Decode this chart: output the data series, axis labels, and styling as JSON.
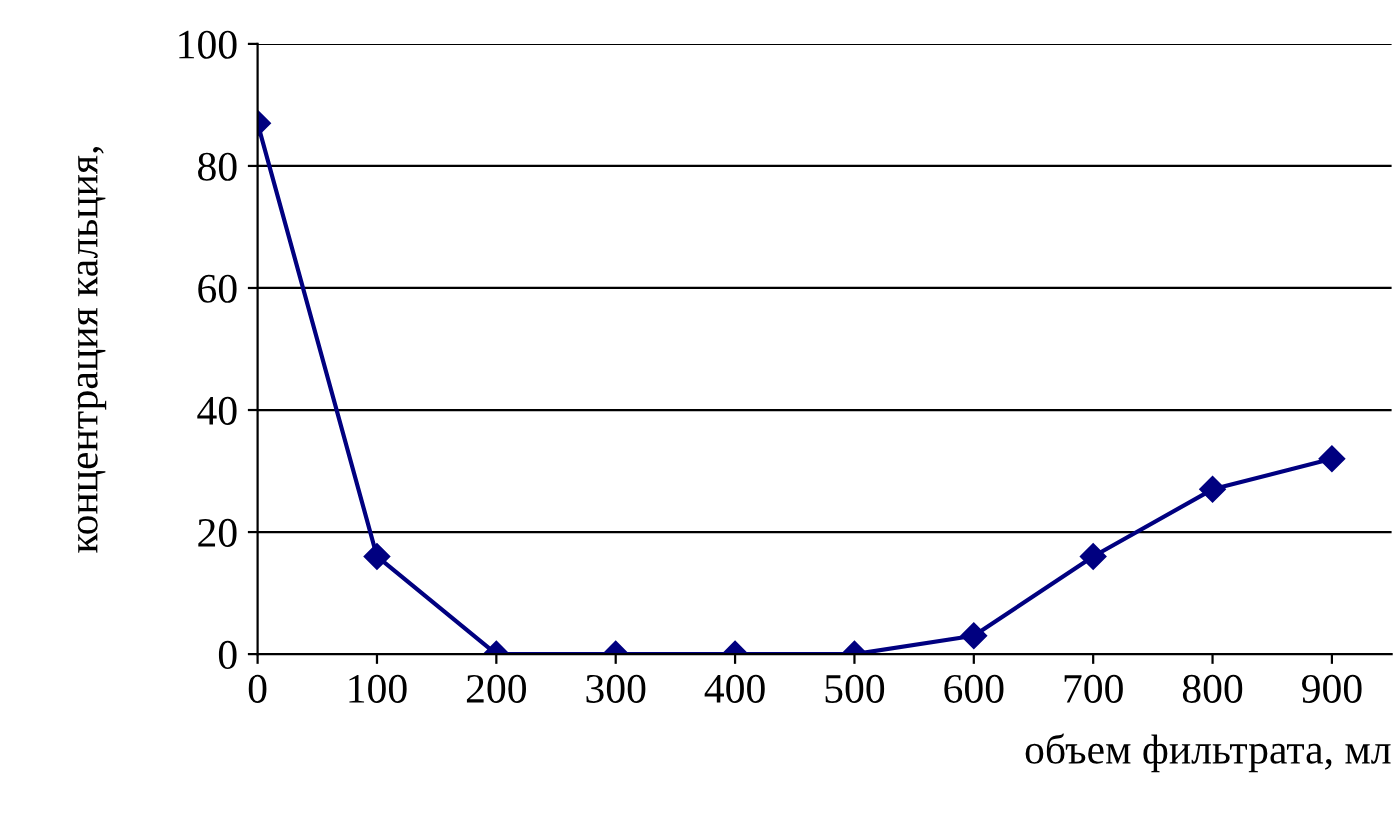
{
  "chart_data": {
    "type": "line",
    "xlabel": "объем фильтрата, мл",
    "ylabel": "концентрация кальция,",
    "x": [
      0,
      100,
      200,
      300,
      400,
      500,
      600,
      700,
      800,
      900
    ],
    "series": [
      {
        "color": "#000080",
        "values": [
          87,
          16,
          0,
          0,
          0,
          0,
          3,
          16,
          27,
          32
        ]
      }
    ],
    "xlim": [
      0,
      950
    ],
    "xticks": [
      0,
      100,
      200,
      300,
      400,
      500,
      600,
      700,
      800,
      900
    ],
    "ylim": [
      0,
      100
    ],
    "yticks": [
      0,
      20,
      40,
      60,
      80,
      100
    ],
    "grid": "y",
    "marker": "diamond",
    "line_style": "solid"
  }
}
